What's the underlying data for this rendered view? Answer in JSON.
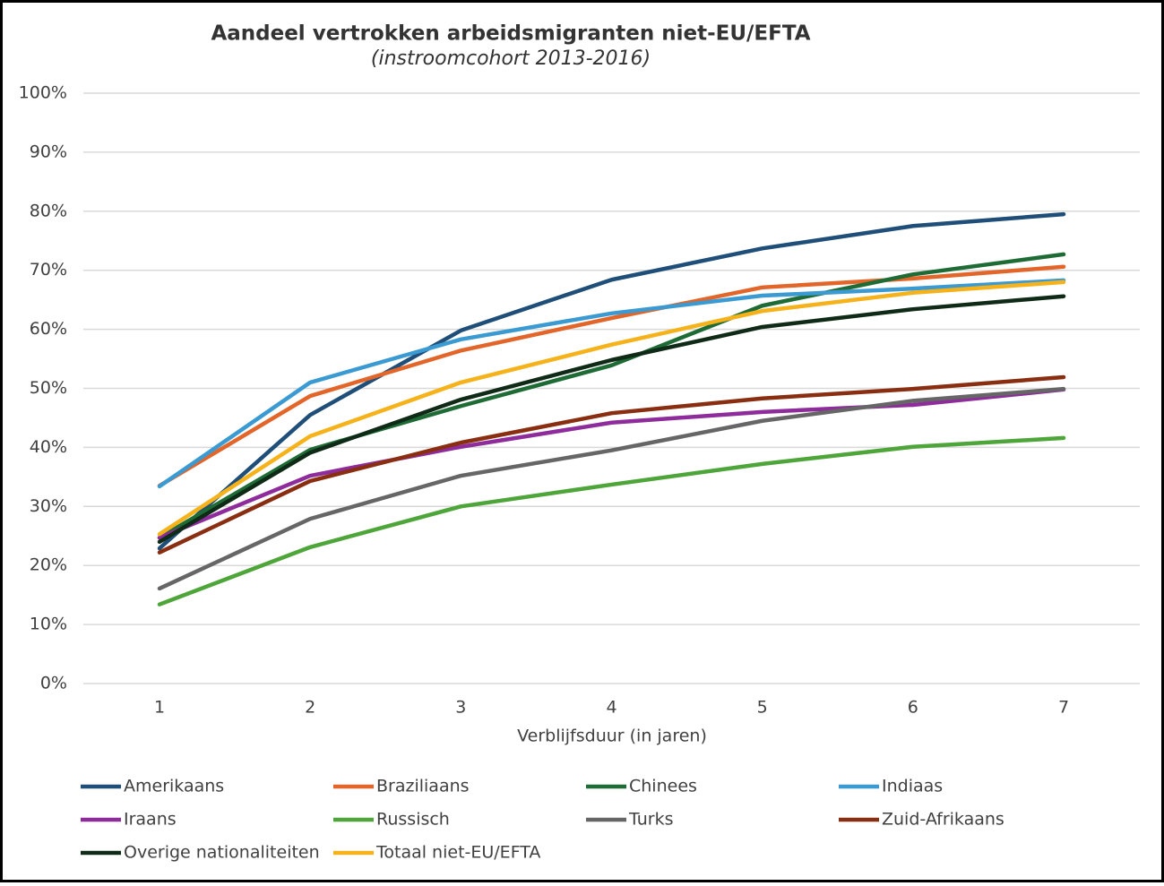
{
  "chart_data": {
    "type": "line",
    "title": "Aandeel vertrokken arbeidsmigranten niet-EU/EFTA",
    "subtitle": "(instroomcohort 2013-2016)",
    "x_label": "Verblijfsduur (in jaren)",
    "categories": [
      "1",
      "2",
      "3",
      "4",
      "5",
      "6",
      "7"
    ],
    "ylim": [
      0,
      100
    ],
    "yticks": [
      {
        "value": 0,
        "label": "0%"
      },
      {
        "value": 10,
        "label": "10%"
      },
      {
        "value": 20,
        "label": "20%"
      },
      {
        "value": 30,
        "label": "30%"
      },
      {
        "value": 40,
        "label": "40%"
      },
      {
        "value": 50,
        "label": "50%"
      },
      {
        "value": 60,
        "label": "60%"
      },
      {
        "value": 70,
        "label": "70%"
      },
      {
        "value": 80,
        "label": "80%"
      },
      {
        "value": 90,
        "label": "90%"
      },
      {
        "value": 100,
        "label": "100%"
      }
    ],
    "grid": true,
    "legend": "bottom",
    "series": [
      {
        "name": "Amerikaans",
        "color": "#1f4e79",
        "values": [
          22.9,
          45.5,
          59.8,
          68.4,
          73.7,
          77.5,
          79.5
        ]
      },
      {
        "name": "Braziliaans",
        "color": "#e2652a",
        "values": [
          33.5,
          48.7,
          56.4,
          61.9,
          67.1,
          68.6,
          70.6
        ]
      },
      {
        "name": "Chinees",
        "color": "#1e6b35",
        "values": [
          24.7,
          39.6,
          47.0,
          53.9,
          64.0,
          69.3,
          72.7
        ]
      },
      {
        "name": "Indiaas",
        "color": "#3a9ad1",
        "values": [
          33.4,
          51.0,
          58.3,
          62.7,
          65.7,
          66.9,
          68.3
        ]
      },
      {
        "name": "Iraans",
        "color": "#8e2c9b",
        "values": [
          24.7,
          35.2,
          40.1,
          44.2,
          46.0,
          47.2,
          49.8
        ]
      },
      {
        "name": "Russisch",
        "color": "#4ea53a",
        "values": [
          13.4,
          23.1,
          30.0,
          33.7,
          37.2,
          40.1,
          41.6
        ]
      },
      {
        "name": "Turks",
        "color": "#666666",
        "values": [
          16.1,
          27.9,
          35.2,
          39.5,
          44.5,
          47.9,
          49.9
        ]
      },
      {
        "name": "Zuid-Afrikaans",
        "color": "#8a2e12",
        "values": [
          22.2,
          34.3,
          40.8,
          45.8,
          48.3,
          49.9,
          51.9
        ]
      },
      {
        "name": "Overige nationaliteiten",
        "color": "#0f2a16",
        "values": [
          24.0,
          39.1,
          48.1,
          54.8,
          60.4,
          63.4,
          65.6
        ]
      },
      {
        "name": "Totaal niet-EU/EFTA",
        "color": "#f5b21a",
        "values": [
          25.3,
          41.9,
          51.0,
          57.4,
          63.1,
          66.2,
          68.0
        ]
      }
    ]
  }
}
